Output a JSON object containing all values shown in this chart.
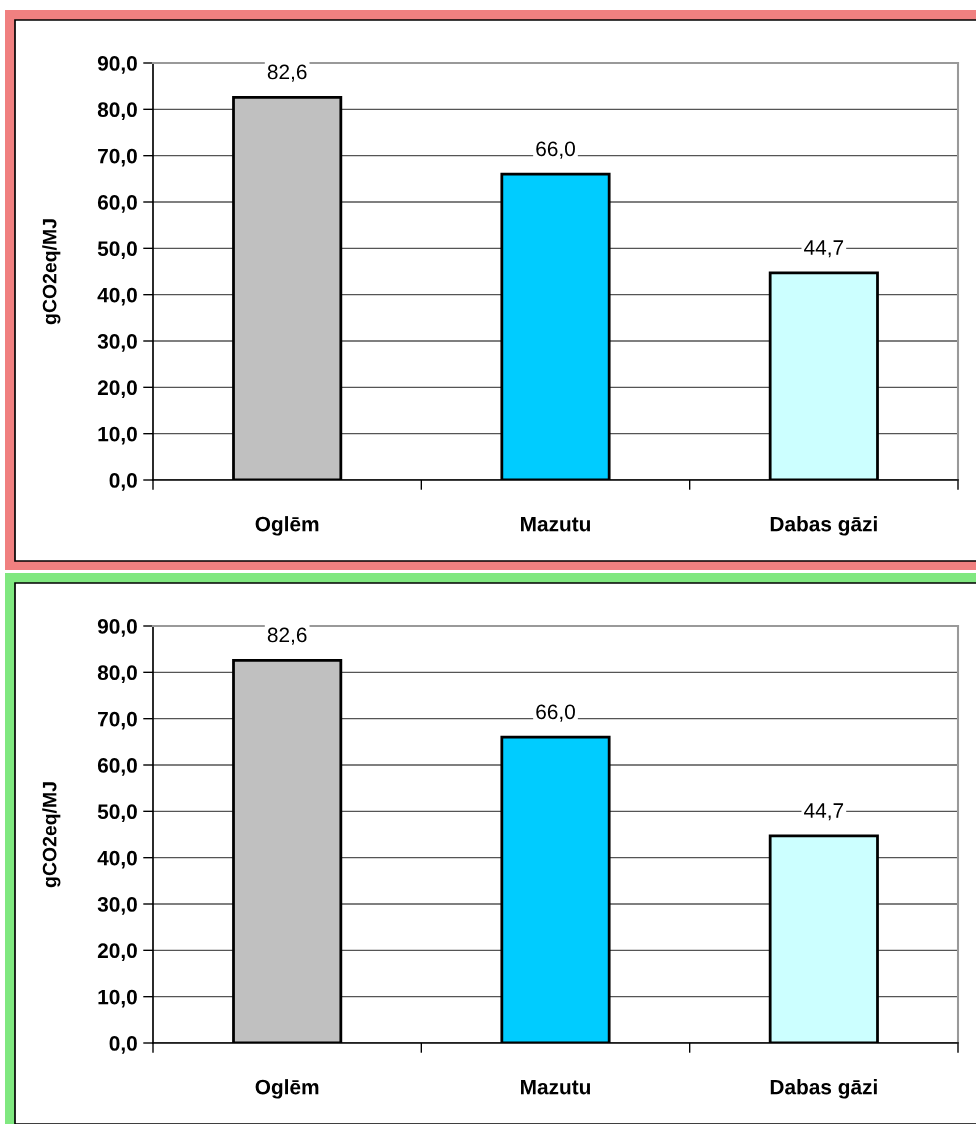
{
  "chart_data": [
    {
      "type": "bar",
      "ylabel": "gCO2eq/MJ",
      "categories": [
        "Oglēm",
        "Mazutu",
        "Dabas gāzi"
      ],
      "values": [
        82.6,
        66.0,
        44.7
      ],
      "colors": [
        "#c0c0c0",
        "#00ccff",
        "#ccffff"
      ],
      "value_labels": [
        "82,6",
        "66,0",
        "44,7"
      ],
      "ylim": [
        0,
        90
      ],
      "yticks": [
        {
          "value": 0,
          "label": "0,0"
        },
        {
          "value": 10,
          "label": "10,0"
        },
        {
          "value": 20,
          "label": "20,0"
        },
        {
          "value": 30,
          "label": "30,0"
        },
        {
          "value": 40,
          "label": "40,0"
        },
        {
          "value": 50,
          "label": "50,0"
        },
        {
          "value": 60,
          "label": "60,0"
        },
        {
          "value": 70,
          "label": "70,0"
        },
        {
          "value": 80,
          "label": "80,0"
        },
        {
          "value": 90,
          "label": "90,0"
        }
      ],
      "grid": "y"
    },
    {
      "type": "bar",
      "ylabel": "gCO2eq/MJ",
      "categories": [
        "Oglēm",
        "Mazutu",
        "Dabas gāzi"
      ],
      "values": [
        82.6,
        66.0,
        44.7
      ],
      "colors": [
        "#c0c0c0",
        "#00ccff",
        "#ccffff"
      ],
      "value_labels": [
        "82,6",
        "66,0",
        "44,7"
      ],
      "ylim": [
        0,
        90
      ],
      "yticks": [
        {
          "value": 0,
          "label": "0,0"
        },
        {
          "value": 10,
          "label": "10,0"
        },
        {
          "value": 20,
          "label": "20,0"
        },
        {
          "value": 30,
          "label": "30,0"
        },
        {
          "value": 40,
          "label": "40,0"
        },
        {
          "value": 50,
          "label": "50,0"
        },
        {
          "value": 60,
          "label": "60,0"
        },
        {
          "value": 70,
          "label": "70,0"
        },
        {
          "value": 80,
          "label": "80,0"
        },
        {
          "value": 90,
          "label": "90,0"
        }
      ],
      "grid": "y"
    }
  ]
}
